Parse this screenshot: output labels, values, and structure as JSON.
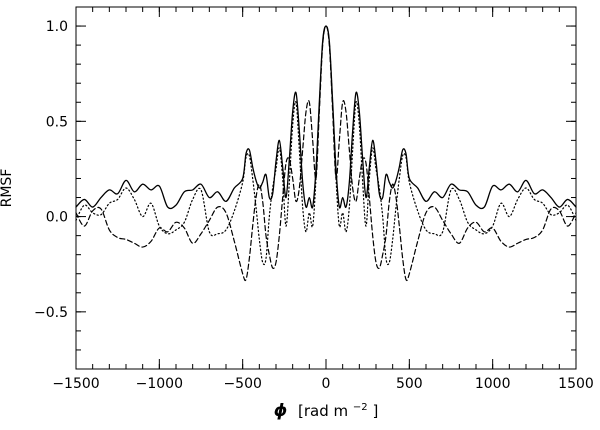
{
  "chart_data": {
    "type": "line",
    "title": "",
    "xlabel_symbol": "ϕ",
    "xlabel_unit_prefix": "[rad m",
    "xlabel_unit_exp": "−2",
    "xlabel_unit_suffix": "]",
    "ylabel": "RMSF",
    "xlim": [
      -1500,
      1500
    ],
    "ylim": [
      -0.8,
      1.1
    ],
    "xticks": [
      {
        "value": -1500,
        "label": "−1500"
      },
      {
        "value": -1000,
        "label": "−1000"
      },
      {
        "value": -500,
        "label": "−500"
      },
      {
        "value": 0,
        "label": "0"
      },
      {
        "value": 500,
        "label": "500"
      },
      {
        "value": 1000,
        "label": "1000"
      },
      {
        "value": 1500,
        "label": "1500"
      }
    ],
    "yticks": [
      {
        "value": -0.5,
        "label": "−0.5"
      },
      {
        "value": 0.0,
        "label": "0.0"
      },
      {
        "value": 0.5,
        "label": "0.5"
      },
      {
        "value": 1.0,
        "label": "1.0"
      }
    ],
    "x_minor_step": 100,
    "y_minor_step": 0.1,
    "grid": false,
    "legend": "none",
    "series": [
      {
        "style": "solid",
        "color": "#000000",
        "x": [
          -1500,
          -1450,
          -1400,
          -1350,
          -1300,
          -1250,
          -1200,
          -1150,
          -1100,
          -1050,
          -1000,
          -950,
          -900,
          -850,
          -800,
          -750,
          -700,
          -650,
          -600,
          -550,
          -500,
          -480,
          -460,
          -440,
          -420,
          -400,
          -380,
          -360,
          -340,
          -320,
          -300,
          -280,
          -260,
          -240,
          -220,
          -200,
          -180,
          -160,
          -140,
          -120,
          -100,
          -80,
          -60,
          -40,
          -20,
          0,
          20,
          40,
          60,
          80,
          100,
          120,
          140,
          160,
          180,
          200,
          220,
          240,
          260,
          280,
          300,
          320,
          340,
          360,
          380,
          400,
          420,
          440,
          460,
          480,
          500,
          550,
          600,
          650,
          700,
          750,
          800,
          850,
          900,
          950,
          1000,
          1050,
          1100,
          1150,
          1200,
          1250,
          1300,
          1350,
          1400,
          1450,
          1500
        ],
        "y": [
          0.05,
          0.09,
          0.05,
          0.1,
          0.14,
          0.12,
          0.19,
          0.13,
          0.17,
          0.14,
          0.16,
          0.05,
          0.06,
          0.13,
          0.14,
          0.17,
          0.1,
          0.13,
          0.08,
          0.15,
          0.2,
          0.33,
          0.35,
          0.26,
          0.19,
          0.15,
          0.18,
          0.22,
          0.1,
          0.12,
          0.29,
          0.4,
          0.26,
          0.1,
          0.3,
          0.55,
          0.65,
          0.45,
          0.18,
          0.05,
          0.1,
          0.05,
          0.25,
          0.6,
          0.92,
          1.0,
          0.92,
          0.6,
          0.25,
          0.05,
          0.1,
          0.05,
          0.18,
          0.45,
          0.65,
          0.55,
          0.3,
          0.1,
          0.26,
          0.4,
          0.29,
          0.12,
          0.1,
          0.22,
          0.18,
          0.15,
          0.19,
          0.26,
          0.35,
          0.33,
          0.2,
          0.15,
          0.08,
          0.13,
          0.1,
          0.17,
          0.14,
          0.13,
          0.06,
          0.05,
          0.16,
          0.14,
          0.17,
          0.13,
          0.19,
          0.12,
          0.14,
          0.1,
          0.05,
          0.09,
          0.05
        ]
      },
      {
        "style": "dotted",
        "color": "#000000",
        "x": [
          -1500,
          -1450,
          -1400,
          -1350,
          -1300,
          -1250,
          -1200,
          -1150,
          -1100,
          -1050,
          -1000,
          -950,
          -900,
          -850,
          -800,
          -750,
          -700,
          -650,
          -600,
          -550,
          -500,
          -480,
          -460,
          -440,
          -420,
          -400,
          -380,
          -360,
          -340,
          -320,
          -300,
          -280,
          -260,
          -240,
          -220,
          -200,
          -180,
          -160,
          -140,
          -120,
          -100,
          -80,
          -60,
          -40,
          -20,
          0,
          20,
          40,
          60,
          80,
          100,
          120,
          140,
          160,
          180,
          200,
          220,
          240,
          260,
          280,
          300,
          320,
          340,
          360,
          380,
          400,
          420,
          440,
          460,
          480,
          500,
          550,
          600,
          650,
          700,
          750,
          800,
          850,
          900,
          950,
          1000,
          1050,
          1100,
          1150,
          1200,
          1250,
          1300,
          1350,
          1400,
          1450,
          1500
        ],
        "y": [
          -0.02,
          0.06,
          0.02,
          0.01,
          0.07,
          0.09,
          0.15,
          0.09,
          0.0,
          0.07,
          -0.05,
          -0.09,
          -0.07,
          -0.03,
          0.09,
          0.14,
          -0.08,
          -0.09,
          -0.07,
          0.03,
          0.18,
          0.31,
          0.32,
          0.2,
          0.05,
          -0.12,
          -0.24,
          -0.22,
          0.0,
          0.15,
          0.25,
          0.36,
          0.2,
          -0.05,
          0.18,
          0.48,
          0.6,
          0.35,
          0.05,
          -0.08,
          0.02,
          -0.05,
          0.2,
          0.58,
          0.91,
          1.0,
          0.91,
          0.58,
          0.2,
          -0.05,
          0.02,
          -0.08,
          0.05,
          0.35,
          0.6,
          0.48,
          0.18,
          -0.05,
          0.2,
          0.36,
          0.25,
          0.15,
          0.0,
          -0.22,
          -0.24,
          -0.12,
          0.05,
          0.2,
          0.32,
          0.31,
          0.18,
          0.03,
          -0.07,
          -0.09,
          -0.08,
          0.14,
          0.09,
          -0.03,
          -0.07,
          -0.09,
          -0.05,
          0.07,
          0.0,
          0.09,
          0.15,
          0.09,
          0.07,
          0.01,
          0.02,
          0.06,
          -0.02
        ]
      },
      {
        "style": "dashed",
        "color": "#000000",
        "x": [
          -1500,
          -1450,
          -1400,
          -1350,
          -1300,
          -1250,
          -1200,
          -1150,
          -1100,
          -1050,
          -1000,
          -950,
          -900,
          -850,
          -800,
          -750,
          -700,
          -650,
          -600,
          -550,
          -500,
          -480,
          -460,
          -440,
          -420,
          -400,
          -380,
          -360,
          -340,
          -320,
          -300,
          -280,
          -260,
          -240,
          -220,
          -200,
          -180,
          -160,
          -140,
          -120,
          -100,
          -80,
          -60,
          -40,
          -20,
          0,
          20,
          40,
          60,
          80,
          100,
          120,
          140,
          160,
          180,
          200,
          220,
          240,
          260,
          280,
          300,
          320,
          340,
          360,
          380,
          400,
          420,
          440,
          460,
          480,
          500,
          550,
          600,
          650,
          700,
          750,
          800,
          850,
          900,
          950,
          1000,
          1050,
          1100,
          1150,
          1200,
          1250,
          1300,
          1350,
          1400,
          1450,
          1500
        ],
        "y": [
          0.02,
          -0.05,
          0.03,
          0.04,
          -0.07,
          -0.11,
          -0.12,
          -0.14,
          -0.16,
          -0.13,
          -0.06,
          -0.08,
          -0.03,
          -0.06,
          -0.14,
          -0.09,
          -0.02,
          0.05,
          0.02,
          -0.13,
          -0.3,
          -0.33,
          -0.22,
          -0.05,
          0.1,
          0.17,
          0.08,
          -0.1,
          -0.2,
          -0.27,
          -0.24,
          -0.1,
          0.1,
          0.28,
          0.3,
          0.2,
          0.08,
          0.15,
          0.35,
          0.55,
          0.6,
          0.4,
          0.2,
          0.55,
          0.9,
          1.0,
          0.9,
          0.55,
          0.2,
          0.4,
          0.6,
          0.55,
          0.35,
          0.15,
          0.08,
          0.2,
          0.3,
          0.28,
          0.1,
          -0.1,
          -0.24,
          -0.27,
          -0.2,
          -0.1,
          0.08,
          0.17,
          0.1,
          -0.05,
          -0.22,
          -0.33,
          -0.3,
          -0.13,
          0.02,
          0.05,
          -0.02,
          -0.09,
          -0.14,
          -0.06,
          -0.03,
          -0.08,
          -0.06,
          -0.13,
          -0.16,
          -0.14,
          -0.12,
          -0.11,
          -0.07,
          0.04,
          0.03,
          -0.05,
          0.02
        ]
      }
    ]
  }
}
